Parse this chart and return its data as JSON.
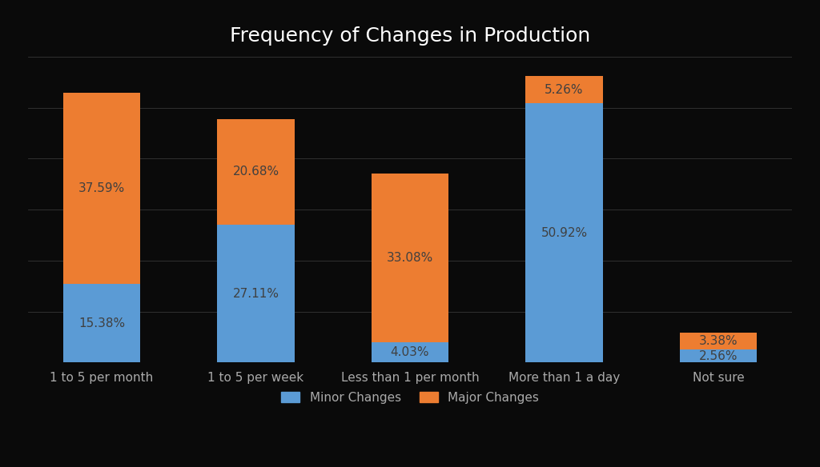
{
  "title": "Frequency of Changes in Production",
  "categories": [
    "1 to 5 per month",
    "1 to 5 per week",
    "Less than 1 per month",
    "More than 1 a day",
    "Not sure"
  ],
  "minor_changes": [
    15.38,
    27.11,
    4.03,
    50.92,
    2.56
  ],
  "major_changes": [
    37.59,
    20.68,
    33.08,
    5.26,
    3.38
  ],
  "minor_color": "#5b9bd5",
  "major_color": "#ed7d31",
  "bg_color": "#0a0a0a",
  "text_color": "#404040",
  "title_color": "#ffffff",
  "xtick_color": "#aaaaaa",
  "grid_color": "#555555",
  "title_fontsize": 18,
  "label_fontsize": 11,
  "tick_fontsize": 11,
  "legend_fontsize": 11,
  "bar_width": 0.5,
  "ylim": [
    0,
    60
  ],
  "minor_label": "Minor Changes",
  "major_label": "Major Changes"
}
